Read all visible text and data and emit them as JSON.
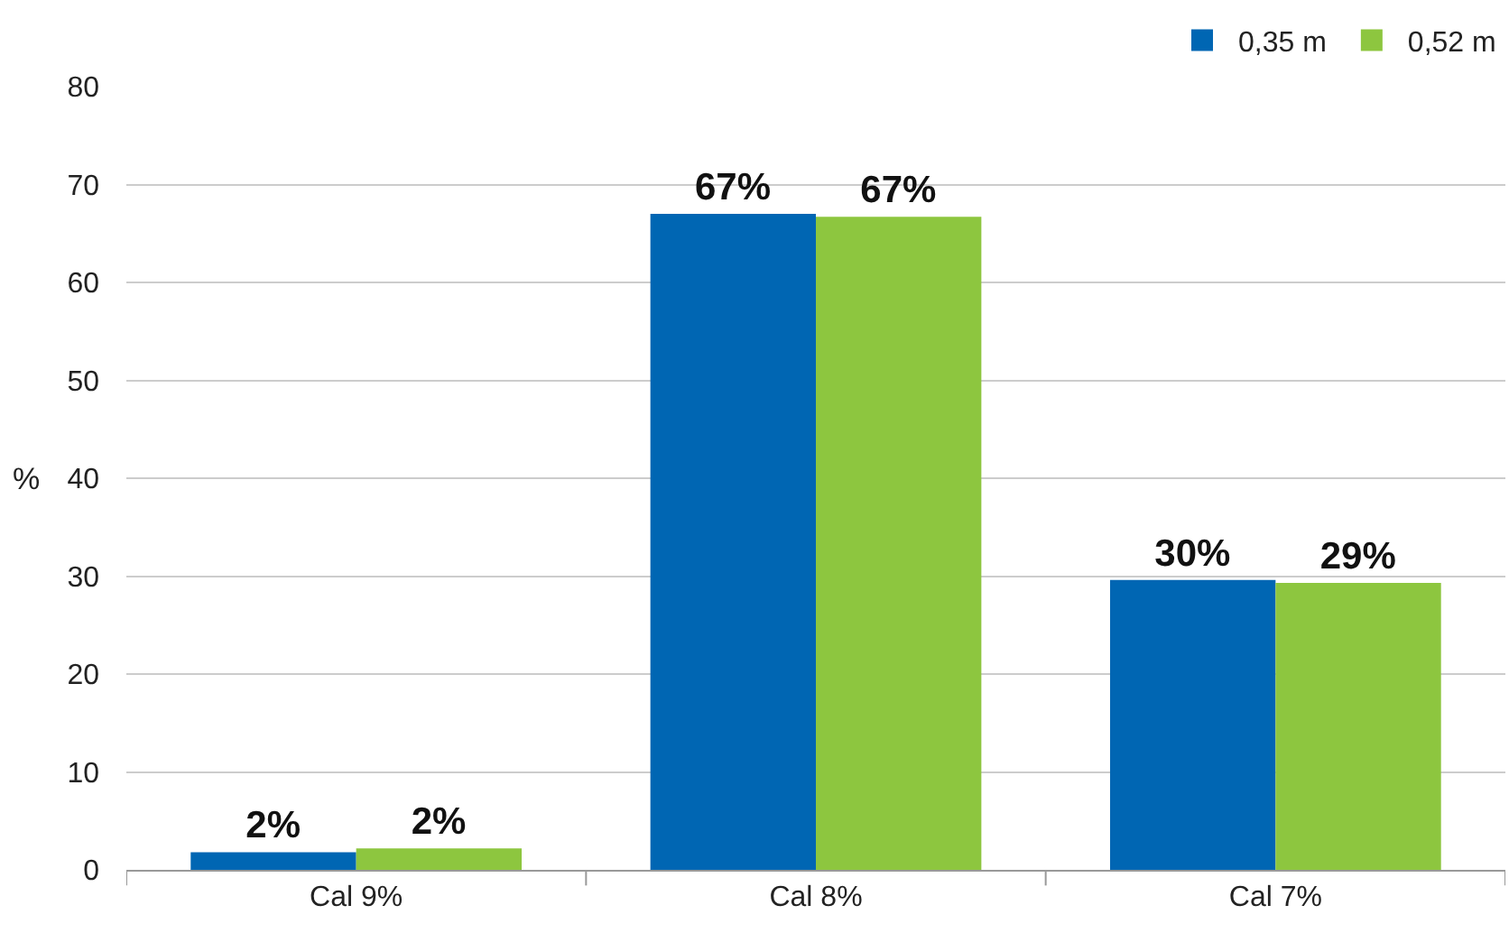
{
  "chart_data": {
    "type": "bar",
    "ylabel": "%",
    "categories": [
      "Cal 9%",
      "Cal 8%",
      "Cal 7%"
    ],
    "series": [
      {
        "name": "0,35 m",
        "color": "#0066b3",
        "values": [
          1.8,
          67,
          29.6
        ],
        "value_labels": [
          "2%",
          "67%",
          "30%"
        ]
      },
      {
        "name": "0,52 m",
        "color": "#8dc63f",
        "values": [
          2.2,
          66.7,
          29.3
        ],
        "value_labels": [
          "2%",
          "67%",
          "29%"
        ]
      }
    ],
    "ylim": [
      0,
      80
    ],
    "yticks": [
      0,
      10,
      20,
      30,
      40,
      50,
      60,
      70,
      80
    ],
    "grid": "y",
    "legend": "top right"
  }
}
